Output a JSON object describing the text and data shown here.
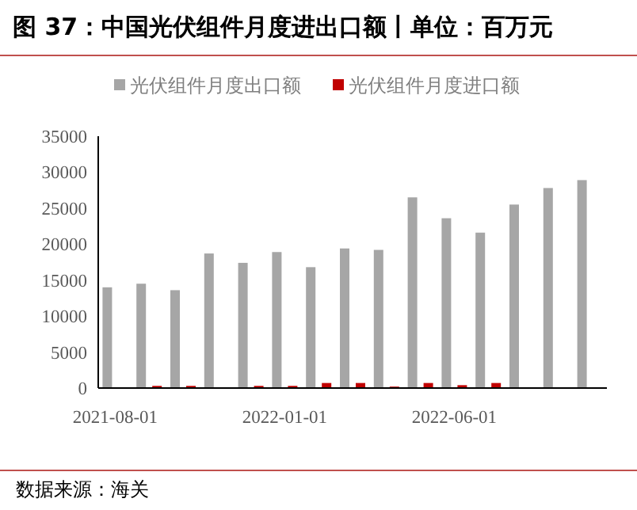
{
  "chart_data": {
    "type": "bar",
    "title": "图 37：中国光伏组件月度进出口额丨单位：百万元",
    "categories": [
      "2021-08-01",
      null,
      null,
      null,
      null,
      "2022-01-01",
      null,
      null,
      null,
      null,
      "2022-06-01",
      null,
      null,
      null,
      null
    ],
    "series": [
      {
        "name": "光伏组件月度出口额",
        "color": "#a6a6a6",
        "values": [
          14000,
          14500,
          13600,
          18700,
          17400,
          18900,
          16800,
          19400,
          19200,
          26500,
          23600,
          21600,
          25500,
          27800,
          28900
        ]
      },
      {
        "name": "光伏组件月度进口额",
        "color": "#c00000",
        "values": [
          null,
          300,
          300,
          null,
          300,
          300,
          700,
          700,
          200,
          700,
          400,
          700,
          null,
          null,
          null
        ]
      }
    ],
    "ylim": [
      0,
      35000
    ],
    "yticks": [
      0,
      5000,
      10000,
      15000,
      20000,
      25000,
      30000,
      35000
    ],
    "legend": "top",
    "annotations": [
      "数据来源：海关"
    ]
  }
}
